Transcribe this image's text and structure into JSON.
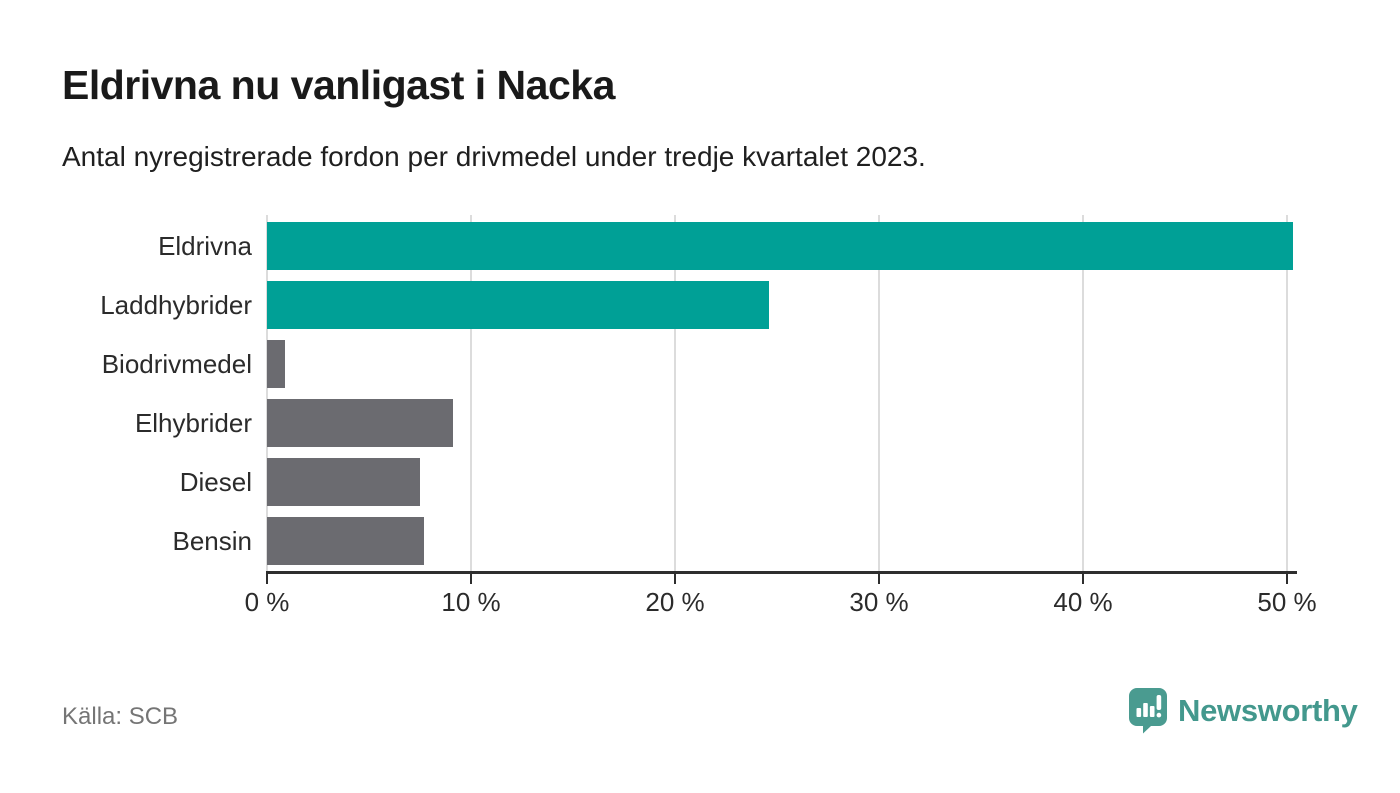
{
  "header": {
    "title": "Eldrivna nu vanligast i Nacka",
    "subtitle": "Antal nyregistrerade fordon per drivmedel under tredje kvartalet 2023."
  },
  "chart_data": {
    "type": "bar",
    "orientation": "horizontal",
    "title": "Eldrivna nu vanligast i Nacka",
    "subtitle": "Antal nyregistrerade fordon per drivmedel under tredje kvartalet 2023.",
    "categories": [
      "Eldrivna",
      "Laddhybrider",
      "Biodrivmedel",
      "Elhybrider",
      "Diesel",
      "Bensin"
    ],
    "values": [
      50.3,
      24.6,
      0.9,
      9.1,
      7.5,
      7.7
    ],
    "unit": "%",
    "xlim": [
      0,
      50
    ],
    "ticks": [
      {
        "value": 0,
        "label": "0 %"
      },
      {
        "value": 10,
        "label": "10 %"
      },
      {
        "value": 20,
        "label": "20 %"
      },
      {
        "value": 30,
        "label": "30 %"
      },
      {
        "value": 40,
        "label": "40 %"
      },
      {
        "value": 50,
        "label": "50 %"
      }
    ],
    "bar_colors": [
      "#00a096",
      "#00a096",
      "#6b6b70",
      "#6b6b70",
      "#6b6b70",
      "#6b6b70"
    ],
    "highlight_color": "#00a096",
    "default_color": "#6b6b70",
    "grid": true,
    "legend": false
  },
  "footer": {
    "source": "Källa: SCB",
    "brand": "Newsworthy",
    "brand_color": "#43988d",
    "brand_icon": "speech-bubble-bar-chart-icon",
    "brand_icon_color": "#4a9b90"
  }
}
